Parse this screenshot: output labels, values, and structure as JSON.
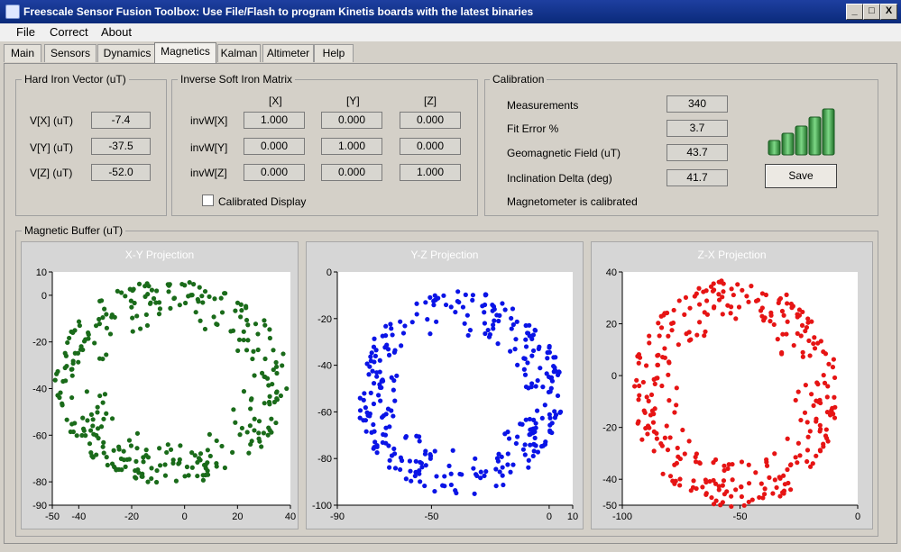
{
  "window": {
    "title": "Freescale Sensor Fusion Toolbox: Use File/Flash to program Kinetis boards with the latest binaries",
    "minimize_glyph": "_",
    "maximize_glyph": "□",
    "close_glyph": "X"
  },
  "menu": [
    "File",
    "Correct",
    "About"
  ],
  "tabs": [
    "Main",
    "Sensors",
    "Dynamics",
    "Magnetics",
    "Kalman",
    "Altimeter",
    "Help"
  ],
  "active_tab": "Magnetics",
  "hard_iron": {
    "title": "Hard Iron Vector (uT)",
    "rows": [
      {
        "label": "V[X] (uT)",
        "value": "-7.4"
      },
      {
        "label": "V[Y] (uT)",
        "value": "-37.5"
      },
      {
        "label": "V[Z] (uT)",
        "value": "-52.0"
      }
    ]
  },
  "soft_iron": {
    "title": "Inverse Soft Iron Matrix",
    "col_headers": [
      "[X]",
      "[Y]",
      "[Z]"
    ],
    "rows": [
      {
        "label": "invW[X]",
        "values": [
          "1.000",
          "0.000",
          "0.000"
        ]
      },
      {
        "label": "invW[Y]",
        "values": [
          "0.000",
          "1.000",
          "0.000"
        ]
      },
      {
        "label": "invW[Z]",
        "values": [
          "0.000",
          "0.000",
          "1.000"
        ]
      }
    ],
    "checkbox_label": "Calibrated Display",
    "checkbox_checked": false
  },
  "calibration": {
    "title": "Calibration",
    "rows": [
      {
        "label": "Measurements",
        "value": "340"
      },
      {
        "label": "Fit Error %",
        "value": "3.7"
      },
      {
        "label": "Geomagnetic Field (uT)",
        "value": "43.7"
      },
      {
        "label": "Inclination Delta (deg)",
        "value": "41.7"
      }
    ],
    "save_label": "Save",
    "status": "Magnetometer is calibrated",
    "signal_bars": 5,
    "signal_color": "#2f9a3a"
  },
  "buffer": {
    "title": "Magnetic Buffer (uT)"
  },
  "chart_data": [
    {
      "type": "scatter",
      "title": "X-Y Projection",
      "color": "#1a6b1a",
      "xlim": [
        -50,
        40
      ],
      "ylim": [
        -90,
        10
      ],
      "xticks": [
        -50,
        -40,
        -20,
        0,
        20,
        40
      ],
      "yticks": [
        10,
        0,
        -20,
        -40,
        -60,
        -80,
        -90
      ],
      "center": [
        -5,
        -37
      ],
      "radius": 44,
      "n": 320
    },
    {
      "type": "scatter",
      "title": "Y-Z Projection",
      "color": "#0a14e6",
      "xlim": [
        -90,
        10
      ],
      "ylim": [
        -100,
        0
      ],
      "xticks": [
        -90,
        -50,
        0,
        10
      ],
      "yticks": [
        0,
        -20,
        -40,
        -60,
        -80,
        -100
      ],
      "center": [
        -38,
        -52
      ],
      "radius": 44,
      "n": 320
    },
    {
      "type": "scatter",
      "title": "Z-X Projection",
      "color": "#e61414",
      "xlim": [
        -100,
        0
      ],
      "ylim": [
        -50,
        40
      ],
      "xticks": [
        -100,
        -50,
        0
      ],
      "yticks": [
        40,
        20,
        0,
        -20,
        -40,
        -50
      ],
      "center": [
        -52,
        -7
      ],
      "radius": 44,
      "n": 320
    }
  ]
}
